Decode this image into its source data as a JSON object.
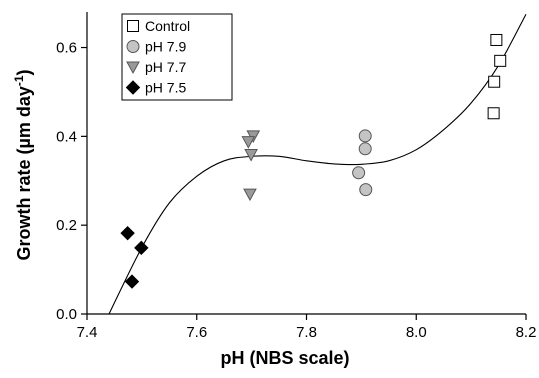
{
  "chart_data": {
    "type": "scatter",
    "xlabel": "pH (NBS scale)",
    "ylabel": "Growth rate (µm day",
    "ylabel_superscript": "-1",
    "ylabel_close": ")",
    "xlim": [
      7.4,
      8.2
    ],
    "ylim": [
      0.0,
      0.68
    ],
    "xticks": [
      "7.4",
      "7.6",
      "7.8",
      "8.0",
      "8.2"
    ],
    "yticks": [
      "0.0",
      "0.2",
      "0.4",
      "0.6"
    ],
    "grid": false,
    "legend_position": "top-left",
    "series": [
      {
        "name": "Control",
        "marker": "square-open",
        "points": [
          [
            8.146,
            0.617
          ],
          [
            8.153,
            0.57
          ],
          [
            8.142,
            0.523
          ],
          [
            8.141,
            0.452
          ]
        ]
      },
      {
        "name": "pH 7.9",
        "marker": "circle-gray",
        "points": [
          [
            7.907,
            0.401
          ],
          [
            7.907,
            0.372
          ],
          [
            7.895,
            0.318
          ],
          [
            7.908,
            0.28
          ]
        ]
      },
      {
        "name": "pH 7.7",
        "marker": "triangle-down-gray",
        "points": [
          [
            7.703,
            0.401
          ],
          [
            7.694,
            0.388
          ],
          [
            7.699,
            0.359
          ],
          [
            7.697,
            0.27
          ]
        ]
      },
      {
        "name": "pH 7.5",
        "marker": "diamond-black",
        "points": [
          [
            7.474,
            0.182
          ],
          [
            7.499,
            0.149
          ],
          [
            7.482,
            0.073
          ]
        ]
      }
    ],
    "fit_curve": {
      "type": "cubic",
      "points": [
        [
          7.44,
          0.0
        ],
        [
          7.5,
          0.15
        ],
        [
          7.55,
          0.25
        ],
        [
          7.6,
          0.31
        ],
        [
          7.65,
          0.345
        ],
        [
          7.7,
          0.355
        ],
        [
          7.75,
          0.355
        ],
        [
          7.8,
          0.345
        ],
        [
          7.85,
          0.338
        ],
        [
          7.9,
          0.337
        ],
        [
          7.95,
          0.345
        ],
        [
          8.0,
          0.37
        ],
        [
          8.05,
          0.415
        ],
        [
          8.1,
          0.475
        ],
        [
          8.15,
          0.56
        ],
        [
          8.2,
          0.675
        ]
      ]
    }
  }
}
